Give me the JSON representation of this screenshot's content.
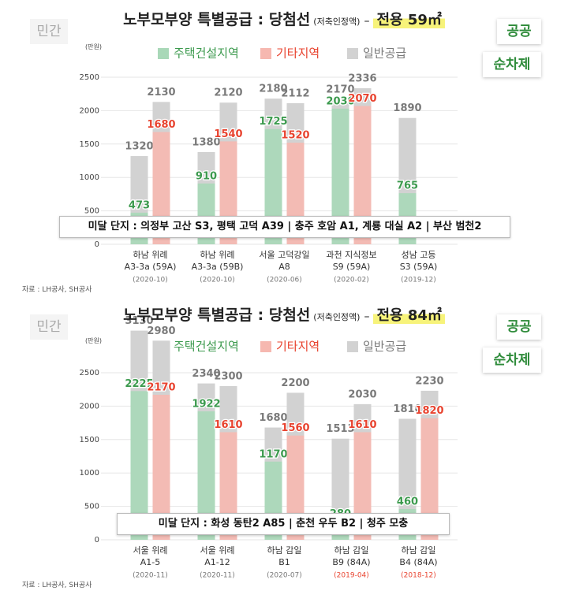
{
  "chart_data": [
    {
      "type": "bar",
      "title": "노부모부양 특별공급 : 당첨선",
      "subtitle": "(저축인정액)",
      "title_separator": "–",
      "highlight": "전용 59㎡",
      "badges": [
        "민간",
        "공공",
        "순차제"
      ],
      "unit_label": "(만원)",
      "note": "미달 단지 : 의정부 고산 S3, 평택 고덕 A39 | 충주 호암 A1, 계룡 대실 A2 | 부산 범천2",
      "source": "자료 : LH공사, SH공사",
      "categories": [
        "하남 위례",
        "하남 위례",
        "서울 고덕강일",
        "과천 지식정보",
        "성남 고등"
      ],
      "category_sublabels": [
        "A3-3a (59A)",
        "A3-3a (59B)",
        "A8",
        "S9 (59A)",
        "S3 (59A)"
      ],
      "category_dates": [
        "(2020-10)",
        "(2020-10)",
        "(2020-06)",
        "(2020-02)",
        "(2019-12)"
      ],
      "highlighted_dates": [
        false,
        false,
        false,
        false,
        false
      ],
      "series": [
        {
          "name": "주택건설지역",
          "color": "#a9d8b8",
          "label_color": "#3c9a4e",
          "values": [
            473,
            910,
            1725,
            2030,
            765
          ],
          "general": [
            1320,
            1380,
            2180,
            2170,
            1890
          ]
        },
        {
          "name": "기타지역",
          "color": "#f6b8b0",
          "label_color": "#e8432f",
          "values": [
            1680,
            1540,
            1520,
            2070,
            null
          ],
          "general": [
            2130,
            2120,
            2112,
            2336,
            null
          ]
        }
      ],
      "general_legend": {
        "name": "일반공급",
        "color": "#d2d2d2",
        "label_color": "#7a7a7a"
      },
      "ylim": [
        0,
        2600
      ],
      "yticks": [
        0,
        500,
        1000,
        1500,
        2000,
        2500
      ],
      "grid": true
    },
    {
      "type": "bar",
      "title": "노부모부양 특별공급 : 당첨선",
      "subtitle": "(저축인정액)",
      "title_separator": "–",
      "highlight": "전용 84㎡",
      "badges": [
        "민간",
        "공공",
        "순차제"
      ],
      "unit_label": "(만원)",
      "note": "미달 단지 : 화성 동탄2 A85 | 춘천 우두 B2 | 청주 모충",
      "source": "자료 : LH공사, SH공사",
      "categories": [
        "서울 위례",
        "서울 위례",
        "하남 감일",
        "하남 감일",
        "하남 감일"
      ],
      "category_sublabels": [
        "A1-5",
        "A1-12",
        "B1",
        "B9 (84A)",
        "B4 (84A)"
      ],
      "category_dates": [
        "(2020-11)",
        "(2020-11)",
        "(2020-07)",
        "(2019-04)",
        "(2018-12)"
      ],
      "highlighted_dates": [
        false,
        false,
        false,
        true,
        true
      ],
      "series": [
        {
          "name": "주택건설지역",
          "color": "#a9d8b8",
          "label_color": "#3c9a4e",
          "values": [
            2225,
            1922,
            1170,
            280,
            460
          ],
          "general": [
            3130,
            2340,
            1680,
            1513,
            1810
          ]
        },
        {
          "name": "기타지역",
          "color": "#f6b8b0",
          "label_color": "#e8432f",
          "values": [
            2170,
            1610,
            1560,
            1610,
            1820
          ],
          "general": [
            2980,
            2300,
            2200,
            2030,
            2230
          ]
        }
      ],
      "general_legend": {
        "name": "일반공급",
        "color": "#d2d2d2",
        "label_color": "#7a7a7a"
      },
      "ylim": [
        0,
        3200
      ],
      "yticks": [
        0,
        500,
        1000,
        1500,
        2000,
        2500
      ],
      "grid": true
    }
  ]
}
